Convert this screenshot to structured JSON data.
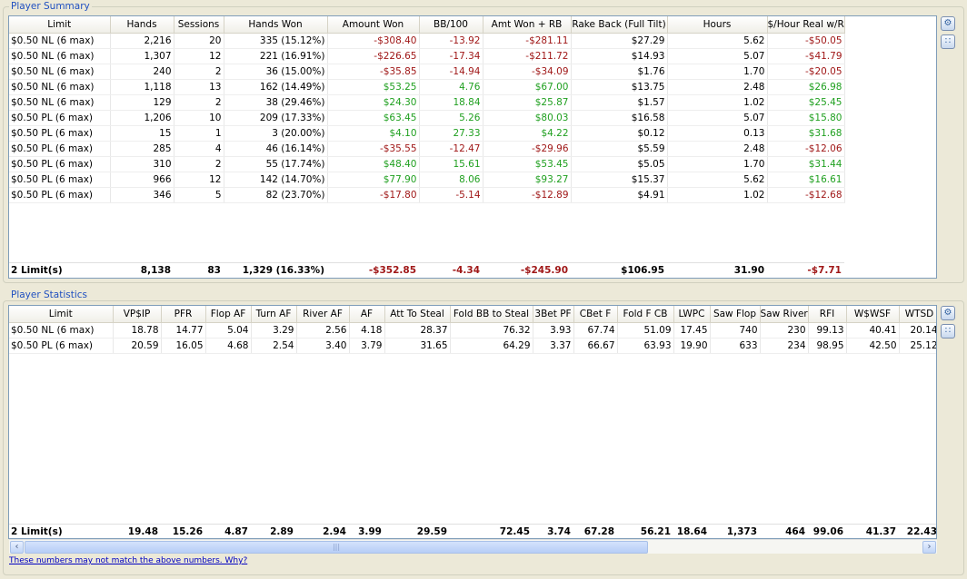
{
  "summary": {
    "title": "Player Summary",
    "columns": [
      "Limit",
      "Hands",
      "Sessions",
      "Hands Won",
      "Amount Won",
      "BB/100",
      "Amt Won + RB",
      "Rake Back (Full Tilt)",
      "Hours",
      "$/Hour Real w/RB"
    ],
    "rows": [
      [
        "$0.50 NL (6 max)",
        "2,216",
        "20",
        "335 (15.12%)",
        "-$308.40",
        "-13.92",
        "-$281.11",
        "$27.29",
        "5.62",
        "-$50.05"
      ],
      [
        "$0.50 NL (6 max)",
        "1,307",
        "12",
        "221 (16.91%)",
        "-$226.65",
        "-17.34",
        "-$211.72",
        "$14.93",
        "5.07",
        "-$41.79"
      ],
      [
        "$0.50 NL (6 max)",
        "240",
        "2",
        "36 (15.00%)",
        "-$35.85",
        "-14.94",
        "-$34.09",
        "$1.76",
        "1.70",
        "-$20.05"
      ],
      [
        "$0.50 NL (6 max)",
        "1,118",
        "13",
        "162 (14.49%)",
        "$53.25",
        "4.76",
        "$67.00",
        "$13.75",
        "2.48",
        "$26.98"
      ],
      [
        "$0.50 NL (6 max)",
        "129",
        "2",
        "38 (29.46%)",
        "$24.30",
        "18.84",
        "$25.87",
        "$1.57",
        "1.02",
        "$25.45"
      ],
      [
        "$0.50 PL (6 max)",
        "1,206",
        "10",
        "209 (17.33%)",
        "$63.45",
        "5.26",
        "$80.03",
        "$16.58",
        "5.07",
        "$15.80"
      ],
      [
        "$0.50 PL (6 max)",
        "15",
        "1",
        "3 (20.00%)",
        "$4.10",
        "27.33",
        "$4.22",
        "$0.12",
        "0.13",
        "$31.68"
      ],
      [
        "$0.50 PL (6 max)",
        "285",
        "4",
        "46 (16.14%)",
        "-$35.55",
        "-12.47",
        "-$29.96",
        "$5.59",
        "2.48",
        "-$12.06"
      ],
      [
        "$0.50 PL (6 max)",
        "310",
        "2",
        "55 (17.74%)",
        "$48.40",
        "15.61",
        "$53.45",
        "$5.05",
        "1.70",
        "$31.44"
      ],
      [
        "$0.50 PL (6 max)",
        "966",
        "12",
        "142 (14.70%)",
        "$77.90",
        "8.06",
        "$93.27",
        "$15.37",
        "5.62",
        "$16.61"
      ],
      [
        "$0.50 PL (6 max)",
        "346",
        "5",
        "82 (23.70%)",
        "-$17.80",
        "-5.14",
        "-$12.89",
        "$4.91",
        "1.02",
        "-$12.68"
      ]
    ],
    "totals": [
      "2 Limit(s)",
      "8,138",
      "83",
      "1,329 (16.33%)",
      "-$352.85",
      "-4.34",
      "-$245.90",
      "$106.95",
      "31.90",
      "-$7.71"
    ]
  },
  "stats": {
    "title": "Player Statistics",
    "columns": [
      "Limit",
      "VP$IP",
      "PFR",
      "Flop AF",
      "Turn AF",
      "River AF",
      "AF",
      "Att To Steal",
      "Fold BB to Steal",
      "3Bet PF",
      "CBet F",
      "Fold F CB",
      "LWPC",
      "Saw Flop",
      "Saw River",
      "RFI",
      "W$WSF",
      "WTSD"
    ],
    "rows": [
      [
        "$0.50 NL (6 max)",
        "18.78",
        "14.77",
        "5.04",
        "3.29",
        "2.56",
        "4.18",
        "28.37",
        "76.32",
        "3.93",
        "67.74",
        "51.09",
        "17.45",
        "740",
        "230",
        "99.13",
        "40.41",
        "20.14"
      ],
      [
        "$0.50 PL (6 max)",
        "20.59",
        "16.05",
        "4.68",
        "2.54",
        "3.40",
        "3.79",
        "31.65",
        "64.29",
        "3.37",
        "66.67",
        "63.93",
        "19.90",
        "633",
        "234",
        "98.95",
        "42.50",
        "25.12"
      ]
    ],
    "totals": [
      "2 Limit(s)",
      "19.48",
      "15.26",
      "4.87",
      "2.89",
      "2.94",
      "3.99",
      "29.59",
      "72.45",
      "3.74",
      "67.28",
      "56.21",
      "18.64",
      "1,373",
      "464",
      "99.06",
      "41.37",
      "22.43"
    ]
  },
  "icons": {
    "settings": "wrench-icon",
    "expand": "expand-icon",
    "scroll_left": "chevron-left-icon",
    "scroll_right": "chevron-right-icon"
  },
  "colors": {
    "negative": "#a01818",
    "positive": "#20a020",
    "legend": "#2050c0"
  },
  "footer": {
    "link": "These numbers may not match the above numbers.  Why?"
  }
}
